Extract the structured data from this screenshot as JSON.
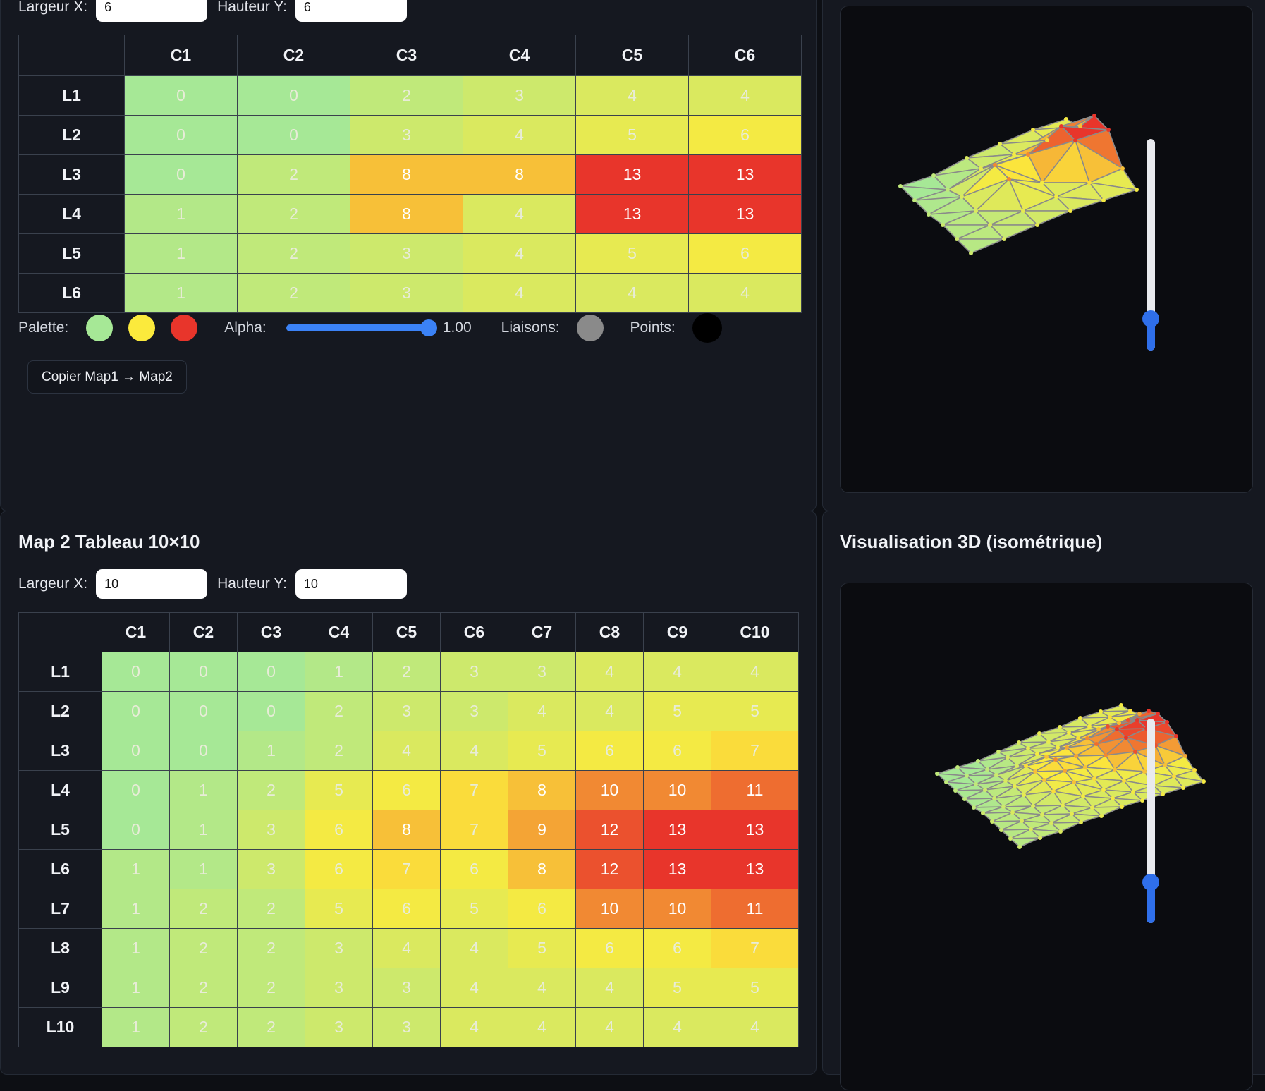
{
  "map1": {
    "width_label": "Largeur X:",
    "width_value": "6",
    "height_label": "Hauteur Y:",
    "height_value": "6",
    "columns": [
      "C1",
      "C2",
      "C3",
      "C4",
      "C5",
      "C6"
    ],
    "rows": [
      "L1",
      "L2",
      "L3",
      "L4",
      "L5",
      "L6"
    ],
    "values": [
      [
        0,
        0,
        2,
        3,
        4,
        4
      ],
      [
        0,
        0,
        3,
        4,
        5,
        6
      ],
      [
        0,
        2,
        8,
        8,
        13,
        13
      ],
      [
        1,
        2,
        8,
        4,
        13,
        13
      ],
      [
        1,
        2,
        3,
        4,
        5,
        6
      ],
      [
        1,
        2,
        3,
        4,
        4,
        4
      ]
    ]
  },
  "controls": {
    "palette_label": "Palette:",
    "palette_colors": [
      "#a6e896",
      "#fbea3c",
      "#e8352b"
    ],
    "alpha_label": "Alpha:",
    "alpha_value": "1.00",
    "links_label": "Liaisons:",
    "links_color": "#8a8a8a",
    "points_label": "Points:",
    "points_color": "#000000",
    "copy_button": "Copier Map1 → Map2"
  },
  "view1": {
    "slider_level": 0.15
  },
  "map2": {
    "title": "Map 2 Tableau 10×10",
    "width_label": "Largeur X:",
    "width_value": "10",
    "height_label": "Hauteur Y:",
    "height_value": "10",
    "columns": [
      "C1",
      "C2",
      "C3",
      "C4",
      "C5",
      "C6",
      "C7",
      "C8",
      "C9",
      "C10"
    ],
    "rows": [
      "L1",
      "L2",
      "L3",
      "L4",
      "L5",
      "L6",
      "L7",
      "L8",
      "L9",
      "L10"
    ],
    "values": [
      [
        0,
        0,
        0,
        1,
        2,
        3,
        3,
        4,
        4,
        4
      ],
      [
        0,
        0,
        0,
        2,
        3,
        3,
        4,
        4,
        5,
        5
      ],
      [
        0,
        0,
        1,
        2,
        4,
        4,
        5,
        6,
        6,
        7
      ],
      [
        0,
        1,
        2,
        5,
        6,
        7,
        8,
        10,
        10,
        11
      ],
      [
        0,
        1,
        3,
        6,
        8,
        7,
        9,
        12,
        13,
        13
      ],
      [
        1,
        1,
        3,
        6,
        7,
        6,
        8,
        12,
        13,
        13
      ],
      [
        1,
        2,
        2,
        5,
        6,
        5,
        6,
        10,
        10,
        11
      ],
      [
        1,
        2,
        2,
        3,
        4,
        4,
        5,
        6,
        6,
        7
      ],
      [
        1,
        2,
        2,
        3,
        3,
        4,
        4,
        4,
        5,
        5
      ],
      [
        1,
        2,
        2,
        3,
        3,
        4,
        4,
        4,
        4,
        4
      ]
    ]
  },
  "view2": {
    "title": "Visualisation 3D (isométrique)",
    "slider_level": 0.2
  }
}
